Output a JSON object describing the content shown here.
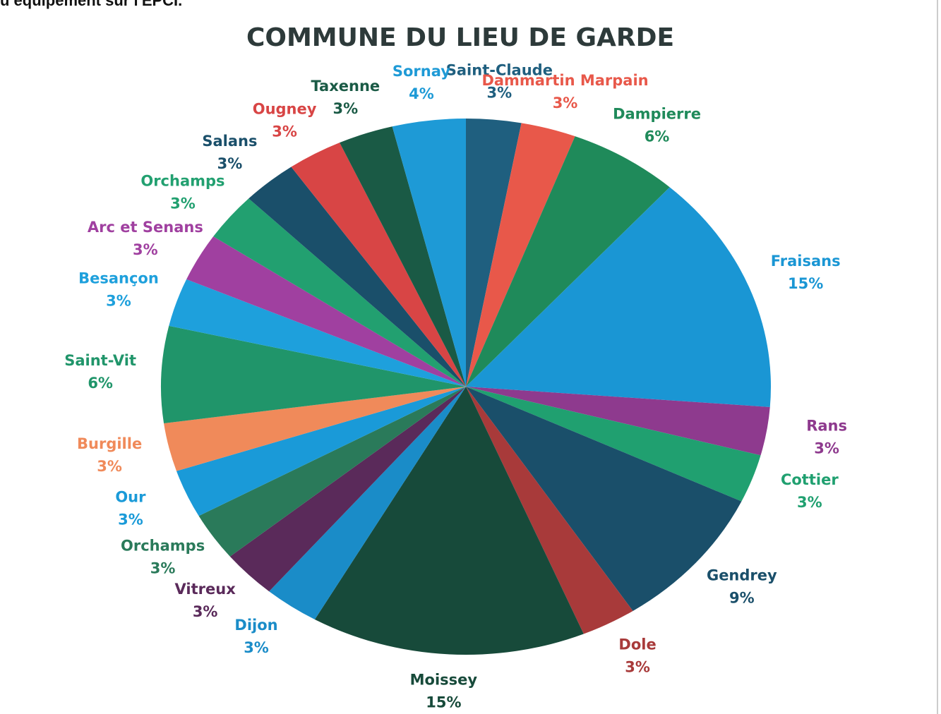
{
  "header_text": "u équipement sur l'EPCI.",
  "chart_data": {
    "type": "pie",
    "title": "COMMUNE DU LIEU DE GARDE",
    "categories": [
      "Saint-Claude",
      "Dammartin Marpain",
      "Dampierre",
      "Fraisans",
      "Rans",
      "Cottier",
      "Gendrey",
      "Dole",
      "Moissey",
      "Dijon",
      "Vitreux",
      "Orchamps",
      "Our",
      "Burgille",
      "Saint-Vit",
      "Besançon",
      "Arc et Senans",
      "Orchamps",
      "Salans",
      "Ougney",
      "Taxenne",
      "Sornay"
    ],
    "values": [
      3,
      3,
      6,
      15,
      3,
      3,
      9,
      3,
      15,
      3,
      3,
      3,
      3,
      3,
      6,
      3,
      3,
      3,
      3,
      3,
      3,
      4
    ],
    "value_labels": [
      "3%",
      "3%",
      "6%",
      "15%",
      "3%",
      "3%",
      "9%",
      "3%",
      "15%",
      "3%",
      "3%",
      "3%",
      "3%",
      "3%",
      "6%",
      "3%",
      "3%",
      "3%",
      "3%",
      "3%",
      "3%",
      "4%"
    ],
    "colors": [
      "#1f5f7f",
      "#e8584a",
      "#1f8a5a",
      "#1a96d4",
      "#8e3a8e",
      "#20a070",
      "#1a4f6a",
      "#a83a3a",
      "#174a3a",
      "#1a8cc8",
      "#5a2a5a",
      "#2a7a5a",
      "#1a9ad8",
      "#f08a5a",
      "#20956a",
      "#1ea0dc",
      "#a040a0",
      "#22a070",
      "#1a4f6a",
      "#d84545",
      "#1a5a45",
      "#1e9ad6"
    ]
  }
}
